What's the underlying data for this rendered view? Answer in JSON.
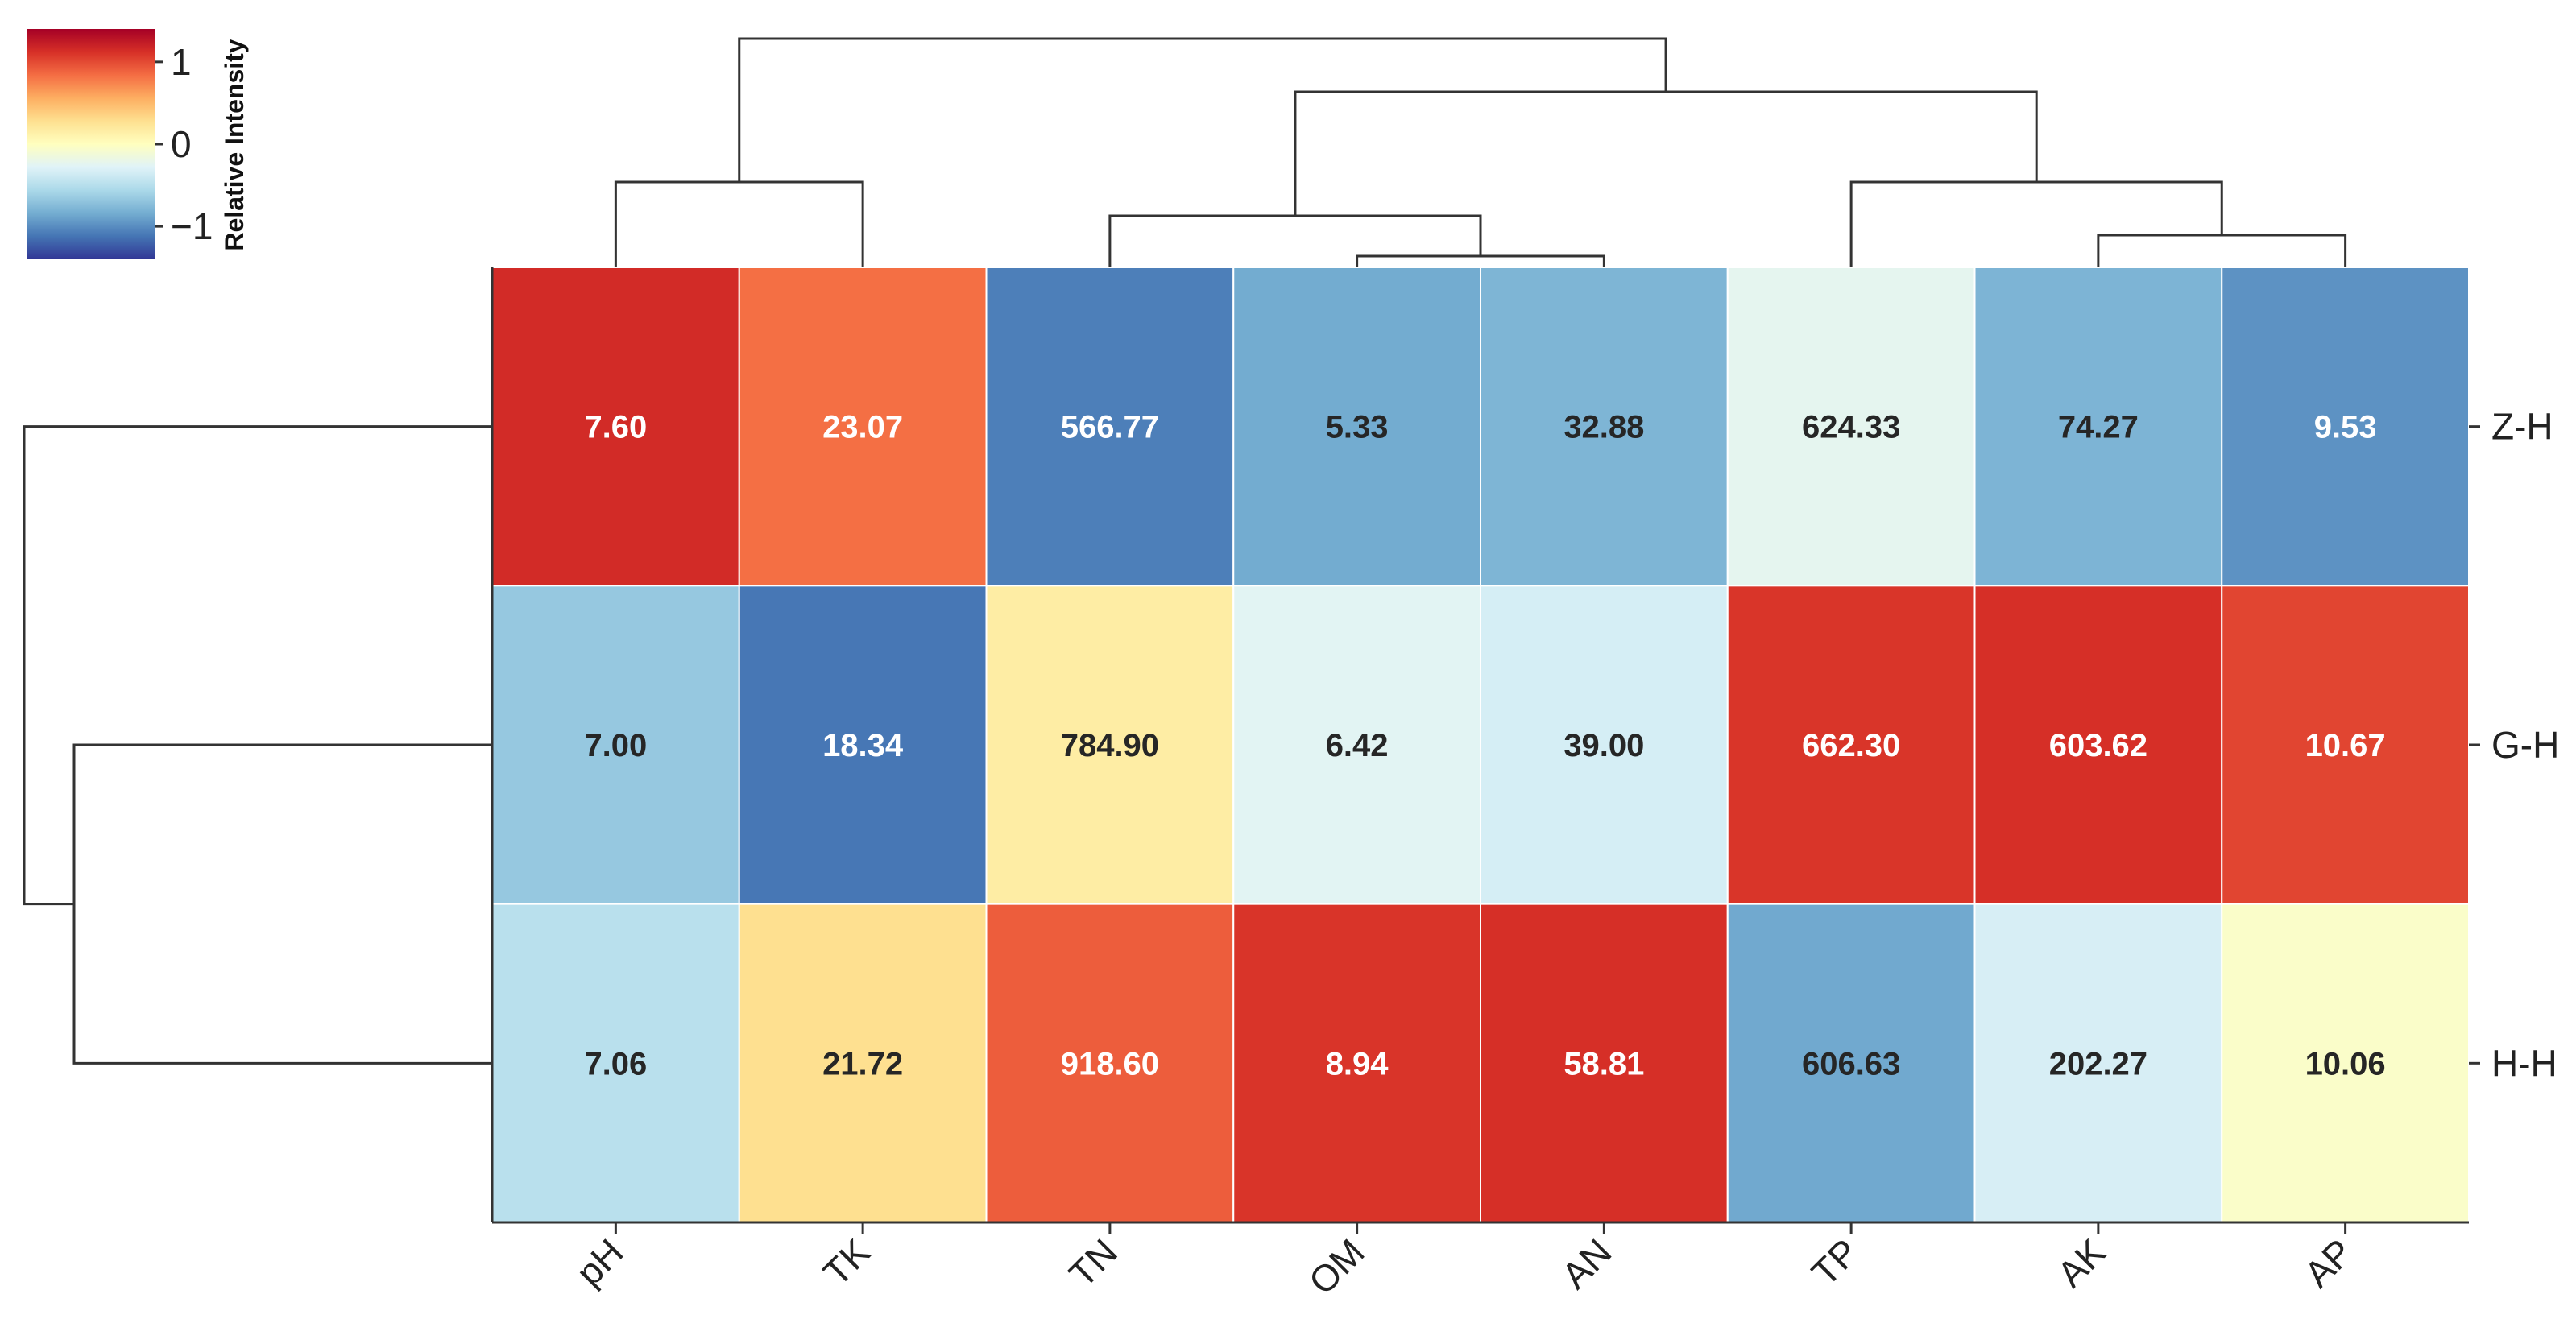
{
  "chart_data": {
    "type": "heatmap",
    "columns": [
      "pH",
      "TK",
      "TN",
      "OM",
      "AN",
      "TP",
      "AK",
      "AP"
    ],
    "rows": [
      "Z-H",
      "G-H",
      "H-H"
    ],
    "values": [
      [
        7.6,
        23.07,
        566.77,
        5.33,
        32.88,
        624.33,
        74.27,
        9.53
      ],
      [
        7.0,
        18.34,
        784.9,
        6.42,
        39.0,
        662.3,
        603.62,
        10.67
      ],
      [
        7.06,
        21.72,
        918.6,
        8.94,
        58.81,
        606.63,
        202.27,
        10.06
      ]
    ],
    "value_labels": [
      [
        "7.60",
        "23.07",
        "566.77",
        "5.33",
        "32.88",
        "624.33",
        "74.27",
        "9.53"
      ],
      [
        "7.00",
        "18.34",
        "784.90",
        "6.42",
        "39.00",
        "662.30",
        "603.62",
        "10.67"
      ],
      [
        "7.06",
        "21.72",
        "918.60",
        "8.94",
        "58.81",
        "606.63",
        "202.27",
        "10.06"
      ]
    ],
    "colormap": "RdYlBu_r",
    "color_stops": [
      "#313695",
      "#4575b4",
      "#74add1",
      "#abd9e9",
      "#e0f3f8",
      "#ffffbf",
      "#fee090",
      "#fdae61",
      "#f46d43",
      "#d73027",
      "#a50026"
    ],
    "standardization": "column z-score",
    "colorbar": {
      "label": "Relative Intensity",
      "range": [
        -1.4,
        1.4
      ],
      "ticks": [
        1,
        0,
        -1
      ],
      "tick_labels": [
        "1",
        "0",
        "−1"
      ],
      "position": "top-left"
    },
    "column_dendrogram": "top",
    "row_dendrogram": "left",
    "title": "",
    "xlabel": "",
    "ylabel": ""
  }
}
